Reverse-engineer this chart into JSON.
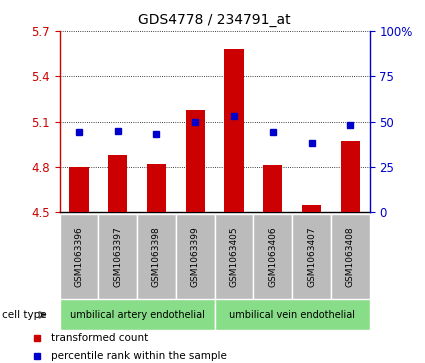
{
  "title": "GDS4778 / 234791_at",
  "samples": [
    "GSM1063396",
    "GSM1063397",
    "GSM1063398",
    "GSM1063399",
    "GSM1063405",
    "GSM1063406",
    "GSM1063407",
    "GSM1063408"
  ],
  "red_values": [
    4.8,
    4.88,
    4.82,
    5.18,
    5.58,
    4.81,
    4.55,
    4.97
  ],
  "blue_values": [
    44,
    45,
    43,
    50,
    53,
    44,
    38,
    48
  ],
  "ylim_left": [
    4.5,
    5.7
  ],
  "ylim_right": [
    0,
    100
  ],
  "left_ticks": [
    4.5,
    4.8,
    5.1,
    5.4,
    5.7
  ],
  "right_ticks": [
    0,
    25,
    50,
    75,
    100
  ],
  "right_tick_labels": [
    "0",
    "25",
    "50",
    "75",
    "100%"
  ],
  "left_tick_color": "#cc0000",
  "right_tick_color": "#0000cc",
  "bar_color": "#cc0000",
  "dot_color": "#0000cc",
  "bar_width": 0.5,
  "bar_baseline": 4.5,
  "cell_type_groups": [
    {
      "label": "umbilical artery endothelial",
      "start": 0,
      "end": 3
    },
    {
      "label": "umbilical vein endothelial",
      "start": 4,
      "end": 7
    }
  ],
  "legend_items": [
    {
      "label": "transformed count",
      "color": "#cc0000"
    },
    {
      "label": "percentile rank within the sample",
      "color": "#0000cc"
    }
  ],
  "cell_type_label": "cell type",
  "sample_box_color": "#bbbbbb",
  "green_color": "#88dd88"
}
